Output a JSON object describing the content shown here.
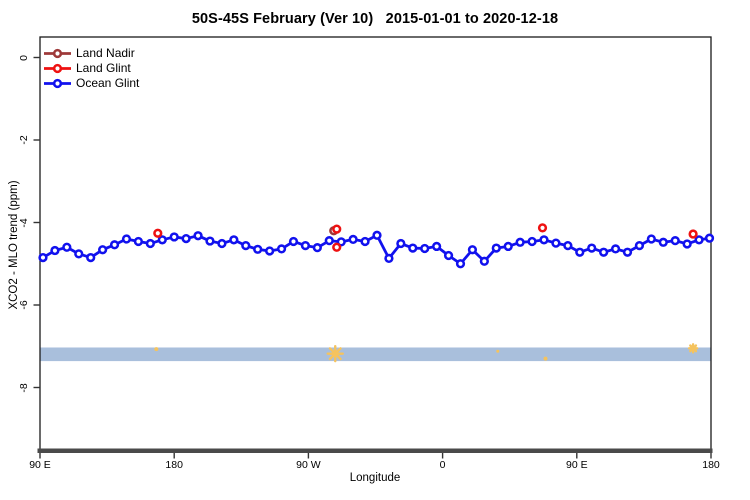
{
  "title": "50S-45S February (Ver 10)   2015-01-01 to 2020-12-18",
  "legend": {
    "items": [
      {
        "label": "Land Nadir",
        "color": "#9e3939"
      },
      {
        "label": "Land Glint",
        "color": "#ee1111"
      },
      {
        "label": "Ocean Glint",
        "color": "#1111ee"
      }
    ]
  },
  "colors": {
    "background": "#ffffff",
    "box_border": "#1a1a1a",
    "axis_line": "#4a4a4a",
    "tick": "#333333",
    "band": "#a9bfdc",
    "band_mark": "#f5c35e",
    "marker_fill": "#ffffff"
  },
  "chart_data": {
    "type": "line",
    "title": "50S-45S February (Ver 10)   2015-01-01 to 2020-12-18",
    "xlabel": "Longitude",
    "ylabel": "XCO2 - MLO trend (ppm)",
    "xlim": [
      90,
      540
    ],
    "ylim": [
      -9.5,
      0.5
    ],
    "grid": false,
    "legend_position": "top-left-inside",
    "x_ticks": [
      {
        "value": 90,
        "label": "90 E"
      },
      {
        "value": 180,
        "label": "180"
      },
      {
        "value": 270,
        "label": "90 W"
      },
      {
        "value": 360,
        "label": "0"
      },
      {
        "value": 450,
        "label": "90 E"
      },
      {
        "value": 540,
        "label": "180"
      }
    ],
    "y_ticks": [
      {
        "value": 0,
        "label": "0"
      },
      {
        "value": -2,
        "label": "-2"
      },
      {
        "value": -4,
        "label": "-4"
      },
      {
        "value": -6,
        "label": "-6"
      },
      {
        "value": -8,
        "label": "-8"
      }
    ],
    "series": [
      {
        "name": "Ocean Glint",
        "color": "#1111ee",
        "connected": true,
        "marker": "open-circle",
        "x": [
          92,
          100,
          108,
          116,
          124,
          132,
          140,
          148,
          156,
          164,
          172,
          180,
          188,
          196,
          204,
          212,
          220,
          228,
          236,
          244,
          252,
          260,
          268,
          276,
          284,
          292,
          300,
          308,
          316,
          324,
          332,
          340,
          348,
          356,
          364,
          372,
          380,
          388,
          396,
          404,
          412,
          420,
          428,
          436,
          444,
          452,
          460,
          468,
          476,
          484,
          492,
          500,
          508,
          516,
          524,
          532,
          539
        ],
        "y": [
          -4.85,
          -4.68,
          -4.6,
          -4.76,
          -4.85,
          -4.66,
          -4.54,
          -4.4,
          -4.46,
          -4.51,
          -4.42,
          -4.35,
          -4.39,
          -4.32,
          -4.45,
          -4.51,
          -4.42,
          -4.56,
          -4.65,
          -4.69,
          -4.64,
          -4.46,
          -4.56,
          -4.61,
          -4.44,
          -4.47,
          -4.41,
          -4.46,
          -4.31,
          -4.87,
          -4.51,
          -4.62,
          -4.63,
          -4.58,
          -4.8,
          -5.0,
          -4.66,
          -4.94,
          -4.62,
          -4.58,
          -4.48,
          -4.46,
          -4.42,
          -4.5,
          -4.56,
          -4.72,
          -4.62,
          -4.72,
          -4.64,
          -4.72,
          -4.56,
          -4.4,
          -4.48,
          -4.44,
          -4.52,
          -4.42,
          -4.38
        ]
      },
      {
        "name": "Land Nadir",
        "color": "#9e3939",
        "connected": false,
        "marker": "open-circle",
        "points": [
          {
            "x": 287,
            "y": -4.2
          }
        ]
      },
      {
        "name": "Land Glint",
        "color": "#ee1111",
        "connected": false,
        "marker": "open-circle",
        "points": [
          {
            "x": 169,
            "y": -4.26
          },
          {
            "x": 289,
            "y": -4.16
          },
          {
            "x": 289,
            "y": -4.6
          },
          {
            "x": 427,
            "y": -4.13
          },
          {
            "x": 528,
            "y": -4.28
          }
        ]
      }
    ],
    "band": {
      "y_from": -7.36,
      "y_to": -7.03,
      "color": "#a9bfdc",
      "mark_color": "#f5c35e",
      "marks": [
        {
          "x": 168,
          "y": -7.07,
          "size": 4
        },
        {
          "x": 288,
          "y": -7.18,
          "size": 15
        },
        {
          "x": 397,
          "y": -7.12,
          "size": 3
        },
        {
          "x": 429,
          "y": -7.3,
          "size": 4
        },
        {
          "x": 528,
          "y": -7.05,
          "size": 8
        }
      ]
    }
  }
}
